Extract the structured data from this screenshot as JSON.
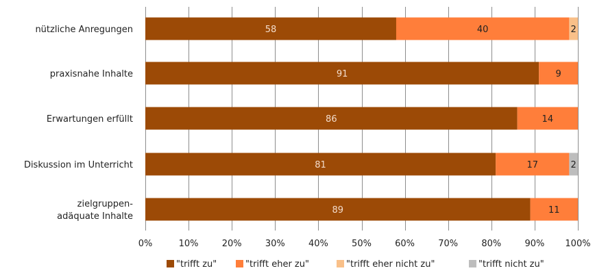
{
  "chart_data": {
    "type": "bar",
    "orientation": "horizontal",
    "stacked": true,
    "categories": [
      "nützliche Anregungen",
      "praxisnahe Inhalte",
      "Erwartungen erfüllt",
      "Diskussion im Unterricht",
      "zielgruppen-\nadäquate Inhalte"
    ],
    "series": [
      {
        "name": "\"trifft zu\"",
        "color": "#9c4a06",
        "values": [
          58,
          91,
          86,
          81,
          89
        ],
        "labels": [
          "58",
          "91",
          "86",
          "81",
          "89"
        ],
        "label_color": "#f3dccb"
      },
      {
        "name": "\"trifft eher zu\"",
        "color": "#ff7e3a",
        "values": [
          40,
          9,
          14,
          17,
          11
        ],
        "labels": [
          "40",
          "9",
          "14",
          "17",
          "11"
        ],
        "label_color": "#222222"
      },
      {
        "name": "\"trifft eher nicht zu\"",
        "color": "#f9c089",
        "values": [
          2,
          0,
          0,
          0,
          0
        ],
        "labels": [
          "2",
          "",
          "",
          "",
          ""
        ],
        "label_color": "#222222"
      },
      {
        "name": "\"trifft nicht zu\"",
        "color": "#bdbdbd",
        "values": [
          0,
          0,
          0,
          2,
          0
        ],
        "labels": [
          "",
          "",
          "",
          "2",
          ""
        ],
        "label_color": "#222222"
      }
    ],
    "x_ticks": [
      "0%",
      "10%",
      "20%",
      "30%",
      "40%",
      "50%",
      "60%",
      "70%",
      "80%",
      "90%",
      "100%"
    ],
    "xlim": [
      0,
      100
    ],
    "grid": true,
    "legend_position": "bottom"
  }
}
